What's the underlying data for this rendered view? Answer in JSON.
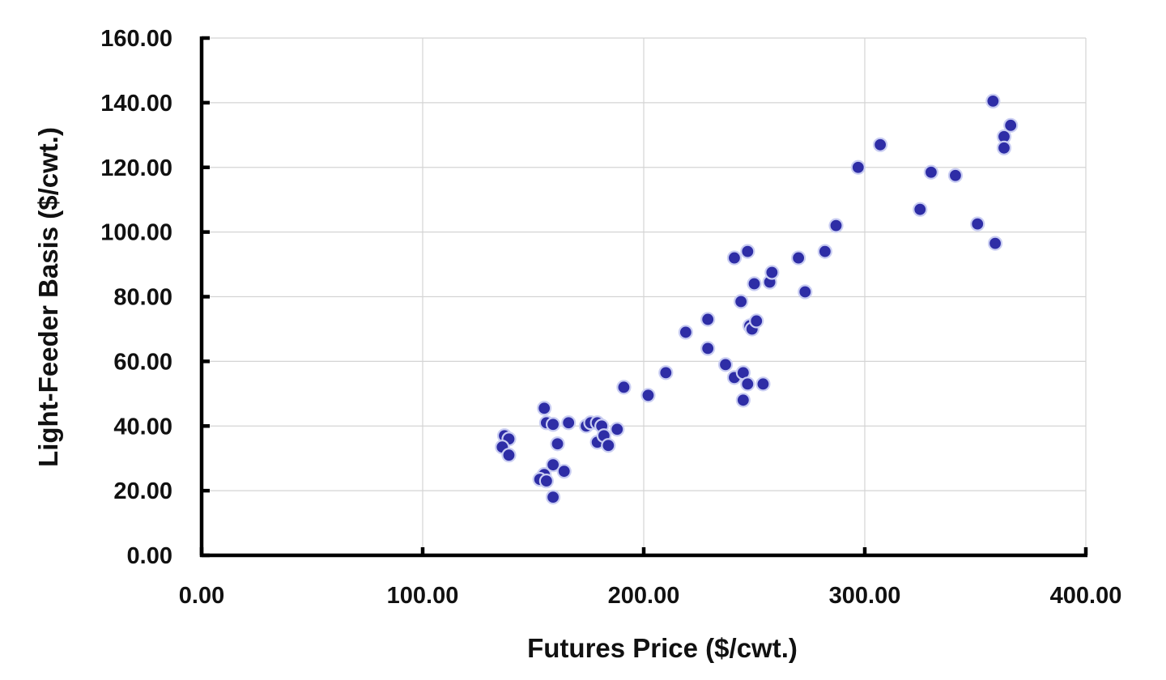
{
  "colors": {
    "marker": "#2e2da6",
    "marker_edge": "#c9cdf2",
    "gridline": "#d4d4d4",
    "axis": "#000000",
    "text": "#111111"
  },
  "chart_data": {
    "type": "scatter",
    "title": "",
    "xlabel": "Futures Price ($/cwt.)",
    "ylabel": "Light-Feeder Basis ($/cwt.)",
    "xlim": [
      0,
      400
    ],
    "ylim": [
      0,
      160
    ],
    "x_ticks": [
      0,
      100,
      200,
      300,
      400
    ],
    "y_ticks": [
      0,
      20,
      40,
      60,
      80,
      100,
      120,
      140,
      160
    ],
    "x_tick_labels": [
      "0.00",
      "100.00",
      "200.00",
      "300.00",
      "400.00"
    ],
    "y_tick_labels": [
      "0.00",
      "20.00",
      "40.00",
      "60.00",
      "80.00",
      "100.00",
      "120.00",
      "140.00",
      "160.00"
    ],
    "grid": true,
    "legend": "none",
    "series": [
      {
        "points": [
          [
            137.0,
            37.0
          ],
          [
            139.0,
            36.0
          ],
          [
            136.0,
            33.5
          ],
          [
            139.0,
            31.0
          ],
          [
            155.0,
            45.5
          ],
          [
            156.0,
            41.0
          ],
          [
            159.0,
            40.5
          ],
          [
            161.0,
            34.5
          ],
          [
            166.0,
            41.0
          ],
          [
            155.0,
            25.0
          ],
          [
            159.0,
            28.0
          ],
          [
            153.0,
            23.5
          ],
          [
            156.0,
            23.0
          ],
          [
            164.0,
            26.0
          ],
          [
            159.0,
            18.0
          ],
          [
            174.0,
            40.0
          ],
          [
            176.0,
            41.0
          ],
          [
            179.0,
            41.0
          ],
          [
            181.0,
            40.0
          ],
          [
            179.0,
            35.0
          ],
          [
            182.0,
            37.0
          ],
          [
            184.0,
            34.0
          ],
          [
            188.0,
            39.0
          ],
          [
            191.0,
            52.0
          ],
          [
            202.0,
            49.5
          ],
          [
            210.0,
            56.5
          ],
          [
            219.0,
            69.0
          ],
          [
            229.0,
            73.0
          ],
          [
            229.0,
            64.0
          ],
          [
            237.0,
            59.0
          ],
          [
            241.0,
            55.0
          ],
          [
            245.0,
            56.5
          ],
          [
            247.0,
            53.0
          ],
          [
            245.0,
            48.0
          ],
          [
            254.0,
            53.0
          ],
          [
            244.0,
            78.5
          ],
          [
            248.0,
            71.0
          ],
          [
            249.0,
            70.0
          ],
          [
            251.0,
            72.5
          ],
          [
            241.0,
            92.0
          ],
          [
            247.0,
            94.0
          ],
          [
            250.0,
            84.0
          ],
          [
            257.0,
            84.5
          ],
          [
            258.0,
            87.5
          ],
          [
            270.0,
            92.0
          ],
          [
            273.0,
            81.5
          ],
          [
            282.0,
            94.0
          ],
          [
            287.0,
            102.0
          ],
          [
            297.0,
            120.0
          ],
          [
            307.0,
            127.0
          ],
          [
            325.0,
            107.0
          ],
          [
            330.0,
            118.5
          ],
          [
            341.0,
            117.5
          ],
          [
            351.0,
            102.5
          ],
          [
            359.0,
            96.5
          ],
          [
            358.0,
            140.5
          ],
          [
            363.0,
            129.5
          ],
          [
            363.0,
            126.0
          ],
          [
            366.0,
            133.0
          ]
        ]
      }
    ]
  }
}
